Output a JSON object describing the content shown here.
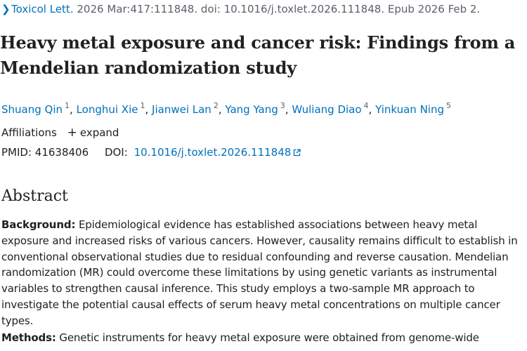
{
  "citation": {
    "journal": "Toxicol Lett.",
    "details": "2026 Mar:417:111848. doi: 10.1016/j.toxlet.2026.111848. Epub 2026 Feb 2."
  },
  "title": "Heavy metal exposure and cancer risk: Findings from a Mendelian randomization study",
  "authors": [
    {
      "name": "Shuang Qin",
      "aff": "1"
    },
    {
      "name": "Longhui Xie",
      "aff": "1"
    },
    {
      "name": "Jianwei Lan",
      "aff": "2"
    },
    {
      "name": "Yang Yang",
      "aff": "3"
    },
    {
      "name": "Wuliang Diao",
      "aff": "4"
    },
    {
      "name": "Yinkuan Ning",
      "aff": "5"
    }
  ],
  "affiliations": {
    "label": "Affiliations",
    "expand_label": "expand"
  },
  "ids": {
    "pmid_label": "PMID:",
    "pmid": "41638406",
    "doi_label": "DOI:",
    "doi": "10.1016/j.toxlet.2026.111848"
  },
  "abstract": {
    "heading": "Abstract",
    "background_label": "Background:",
    "background_text": "Epidemiological evidence has established associations between heavy metal exposure and increased risks of various cancers. However, causality remains difficult to establish in conventional observational studies due to residual confounding and reverse causation. Mendelian randomization (MR) could overcome these limitations by using genetic variants as instrumental variables to strengthen causal inference. This study employs a two-sample MR approach to investigate the potential causal effects of serum heavy metal concentrations on multiple cancer types.",
    "methods_label": "Methods:",
    "methods_text": "Genetic instruments for heavy metal exposure were obtained from genome-wide"
  },
  "icons": {
    "chevron": "chevron-right-icon",
    "plus": "plus-icon",
    "external": "external-link-icon"
  },
  "colors": {
    "link": "#0071bc",
    "text": "#212121",
    "muted": "#5b616b"
  }
}
